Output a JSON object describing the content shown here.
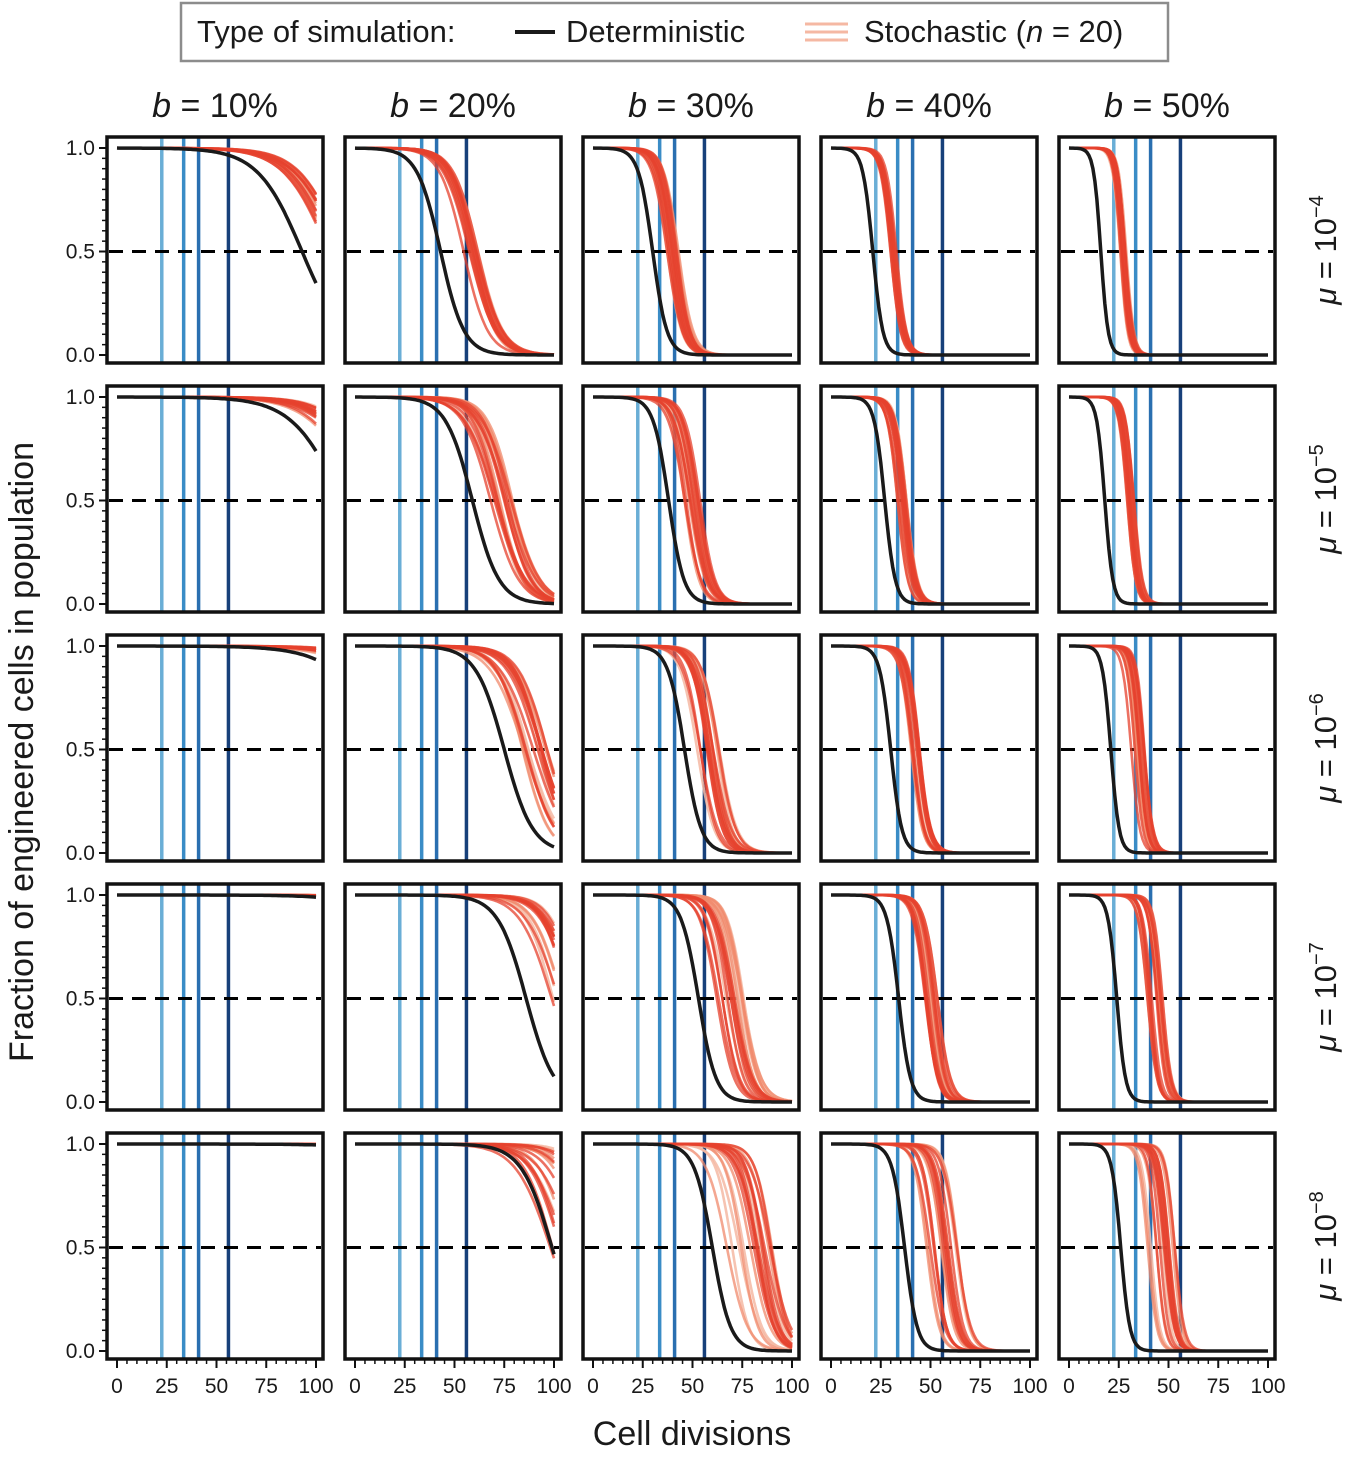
{
  "legend": {
    "title": "Type of simulation:",
    "deterministic_label": "Deterministic",
    "stochastic_label_prefix": "Stochastic (",
    "stochastic_n_symbol": "n",
    "stochastic_n_value": " = 20)"
  },
  "figure": {
    "ylabel": "Fraction of engineered cells in population",
    "xlabel": "Cell divisions"
  },
  "column_headers": [
    {
      "symbol": "b",
      "text": " = 10%"
    },
    {
      "symbol": "b",
      "text": " = 20%"
    },
    {
      "symbol": "b",
      "text": " = 30%"
    },
    {
      "symbol": "b",
      "text": " = 40%"
    },
    {
      "symbol": "b",
      "text": " = 50%"
    }
  ],
  "row_headers": [
    {
      "symbol": "μ",
      "text": " = 10",
      "exp": "−4"
    },
    {
      "symbol": "μ",
      "text": " = 10",
      "exp": "−5"
    },
    {
      "symbol": "μ",
      "text": " = 10",
      "exp": "−6"
    },
    {
      "symbol": "μ",
      "text": " = 10",
      "exp": "−7"
    },
    {
      "symbol": "μ",
      "text": " = 10",
      "exp": "−8"
    }
  ],
  "chart_data": {
    "type": "line",
    "grid": "5x5 small multiples",
    "xlim": [
      0,
      100
    ],
    "ylim": [
      0,
      1
    ],
    "x_ticks": [
      0,
      25,
      50,
      75,
      100
    ],
    "x_tick_labels": [
      "0",
      "25",
      "50",
      "75",
      "100"
    ],
    "y_ticks": [
      0,
      0.5,
      1
    ],
    "y_tick_labels": [
      "0.0",
      "0.5",
      "1.0"
    ],
    "reference_hline": 0.5,
    "vertical_markers": [
      {
        "x": 22.5,
        "color": "#6aaed6"
      },
      {
        "x": 33.5,
        "color": "#3a8cc6"
      },
      {
        "x": 41,
        "color": "#2a6fb0"
      },
      {
        "x": 56,
        "color": "#17407a"
      }
    ],
    "colors": {
      "deterministic": "#1a1a1a",
      "stochastic": [
        "#f5b8a3",
        "#f08a6c",
        "#e5412d"
      ],
      "reference": "#000000"
    },
    "b_values": [
      "10%",
      "20%",
      "30%",
      "40%",
      "50%"
    ],
    "mu_values": [
      "1e-4",
      "1e-5",
      "1e-6",
      "1e-7",
      "1e-8"
    ],
    "panels": [
      {
        "row": 0,
        "col": 0,
        "det_mid": 93,
        "det_k": 0.09,
        "stoch_mid": [
          104,
          114
        ],
        "stoch_k": [
          0.085,
          0.095
        ]
      },
      {
        "row": 0,
        "col": 1,
        "det_mid": 43,
        "det_k": 0.17,
        "stoch_mid": [
          54,
          63
        ],
        "stoch_k": [
          0.15,
          0.18
        ]
      },
      {
        "row": 0,
        "col": 2,
        "det_mid": 30,
        "det_k": 0.28,
        "stoch_mid": [
          37,
          43
        ],
        "stoch_k": [
          0.25,
          0.3
        ]
      },
      {
        "row": 0,
        "col": 3,
        "det_mid": 21,
        "det_k": 0.4,
        "stoch_mid": [
          29,
          33
        ],
        "stoch_k": [
          0.36,
          0.42
        ]
      },
      {
        "row": 0,
        "col": 4,
        "det_mid": 16,
        "det_k": 0.55,
        "stoch_mid": [
          25,
          29
        ],
        "stoch_k": [
          0.5,
          0.58
        ]
      },
      {
        "row": 1,
        "col": 0,
        "det_mid": 113,
        "det_k": 0.08,
        "stoch_mid": [
          122,
          135
        ],
        "stoch_k": [
          0.07,
          0.09
        ]
      },
      {
        "row": 1,
        "col": 1,
        "det_mid": 59,
        "det_k": 0.15,
        "stoch_mid": [
          66,
          81
        ],
        "stoch_k": [
          0.13,
          0.17
        ]
      },
      {
        "row": 1,
        "col": 2,
        "det_mid": 38,
        "det_k": 0.26,
        "stoch_mid": [
          45,
          54
        ],
        "stoch_k": [
          0.24,
          0.28
        ]
      },
      {
        "row": 1,
        "col": 3,
        "det_mid": 27,
        "det_k": 0.38,
        "stoch_mid": [
          33,
          38
        ],
        "stoch_k": [
          0.34,
          0.4
        ]
      },
      {
        "row": 1,
        "col": 4,
        "det_mid": 18,
        "det_k": 0.5,
        "stoch_mid": [
          29,
          33
        ],
        "stoch_k": [
          0.46,
          0.54
        ]
      },
      {
        "row": 2,
        "col": 0,
        "det_mid": 138,
        "det_k": 0.07,
        "stoch_mid": [
          150,
          162
        ],
        "stoch_k": [
          0.06,
          0.08
        ]
      },
      {
        "row": 2,
        "col": 1,
        "det_mid": 75,
        "det_k": 0.14,
        "stoch_mid": [
          80,
          97
        ],
        "stoch_k": [
          0.12,
          0.16
        ]
      },
      {
        "row": 2,
        "col": 2,
        "det_mid": 46,
        "det_k": 0.24,
        "stoch_mid": [
          52,
          64
        ],
        "stoch_k": [
          0.22,
          0.27
        ]
      },
      {
        "row": 2,
        "col": 3,
        "det_mid": 30,
        "det_k": 0.36,
        "stoch_mid": [
          39,
          45
        ],
        "stoch_k": [
          0.32,
          0.38
        ]
      },
      {
        "row": 2,
        "col": 4,
        "det_mid": 21,
        "det_k": 0.48,
        "stoch_mid": [
          31,
          38
        ],
        "stoch_k": [
          0.44,
          0.52
        ]
      },
      {
        "row": 3,
        "col": 0,
        "det_mid": 165,
        "det_k": 0.07,
        "stoch_mid": [
          175,
          190
        ],
        "stoch_k": [
          0.06,
          0.08
        ]
      },
      {
        "row": 3,
        "col": 1,
        "det_mid": 86,
        "det_k": 0.14,
        "stoch_mid": [
          96,
          113
        ],
        "stoch_k": [
          0.12,
          0.16
        ]
      },
      {
        "row": 3,
        "col": 2,
        "det_mid": 53,
        "det_k": 0.23,
        "stoch_mid": [
          62,
          76
        ],
        "stoch_k": [
          0.21,
          0.26
        ]
      },
      {
        "row": 3,
        "col": 3,
        "det_mid": 34,
        "det_k": 0.34,
        "stoch_mid": [
          47,
          54
        ],
        "stoch_k": [
          0.3,
          0.36
        ]
      },
      {
        "row": 3,
        "col": 4,
        "det_mid": 24,
        "det_k": 0.46,
        "stoch_mid": [
          39,
          48
        ],
        "stoch_k": [
          0.42,
          0.5
        ]
      },
      {
        "row": 4,
        "col": 0,
        "det_mid": 190,
        "det_k": 0.06,
        "stoch_mid": [
          200,
          220
        ],
        "stoch_k": [
          0.05,
          0.07
        ]
      },
      {
        "row": 4,
        "col": 1,
        "det_mid": 99,
        "det_k": 0.13,
        "stoch_mid": [
          96,
          128
        ],
        "stoch_k": [
          0.11,
          0.15
        ]
      },
      {
        "row": 4,
        "col": 2,
        "det_mid": 60,
        "det_k": 0.22,
        "stoch_mid": [
          66,
          90
        ],
        "stoch_k": [
          0.19,
          0.25
        ]
      },
      {
        "row": 4,
        "col": 3,
        "det_mid": 37,
        "det_k": 0.32,
        "stoch_mid": [
          46,
          64
        ],
        "stoch_k": [
          0.28,
          0.34
        ]
      },
      {
        "row": 4,
        "col": 4,
        "det_mid": 26,
        "det_k": 0.44,
        "stoch_mid": [
          39,
          54
        ],
        "stoch_k": [
          0.4,
          0.48
        ]
      }
    ]
  }
}
